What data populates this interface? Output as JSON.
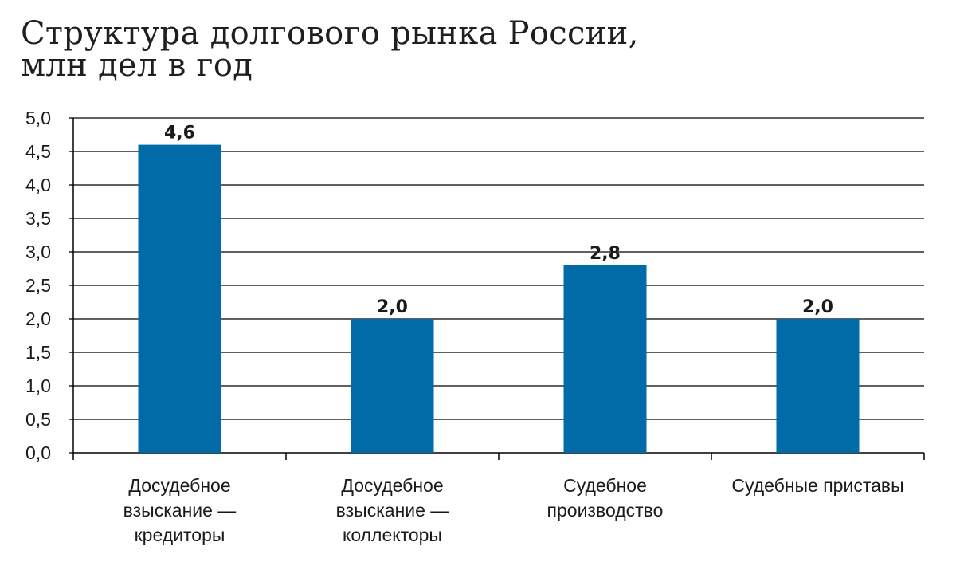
{
  "chart_data": {
    "type": "bar",
    "title_lines": [
      "Структура долгового рынка России,",
      "млн дел в год"
    ],
    "categories": [
      [
        "Досудебное",
        "взыскание —",
        "кредиторы"
      ],
      [
        "Досудебное",
        "взыскание —",
        "коллекторы"
      ],
      [
        "Судебное",
        "производство"
      ],
      [
        "Судебные приставы"
      ]
    ],
    "values": [
      4.6,
      2.0,
      2.8,
      2.0
    ],
    "data_labels": [
      "4,6",
      "2,0",
      "2,8",
      "2,0"
    ],
    "ylim": [
      0,
      5
    ],
    "yticks": [
      "0,0",
      "0,5",
      "1,0",
      "1,5",
      "2,0",
      "2,5",
      "3,0",
      "3,5",
      "4,0",
      "4,5",
      "5,0"
    ],
    "grid": true,
    "legend": "none",
    "bar_color": "#006ba6",
    "grid_color": "#000000"
  }
}
